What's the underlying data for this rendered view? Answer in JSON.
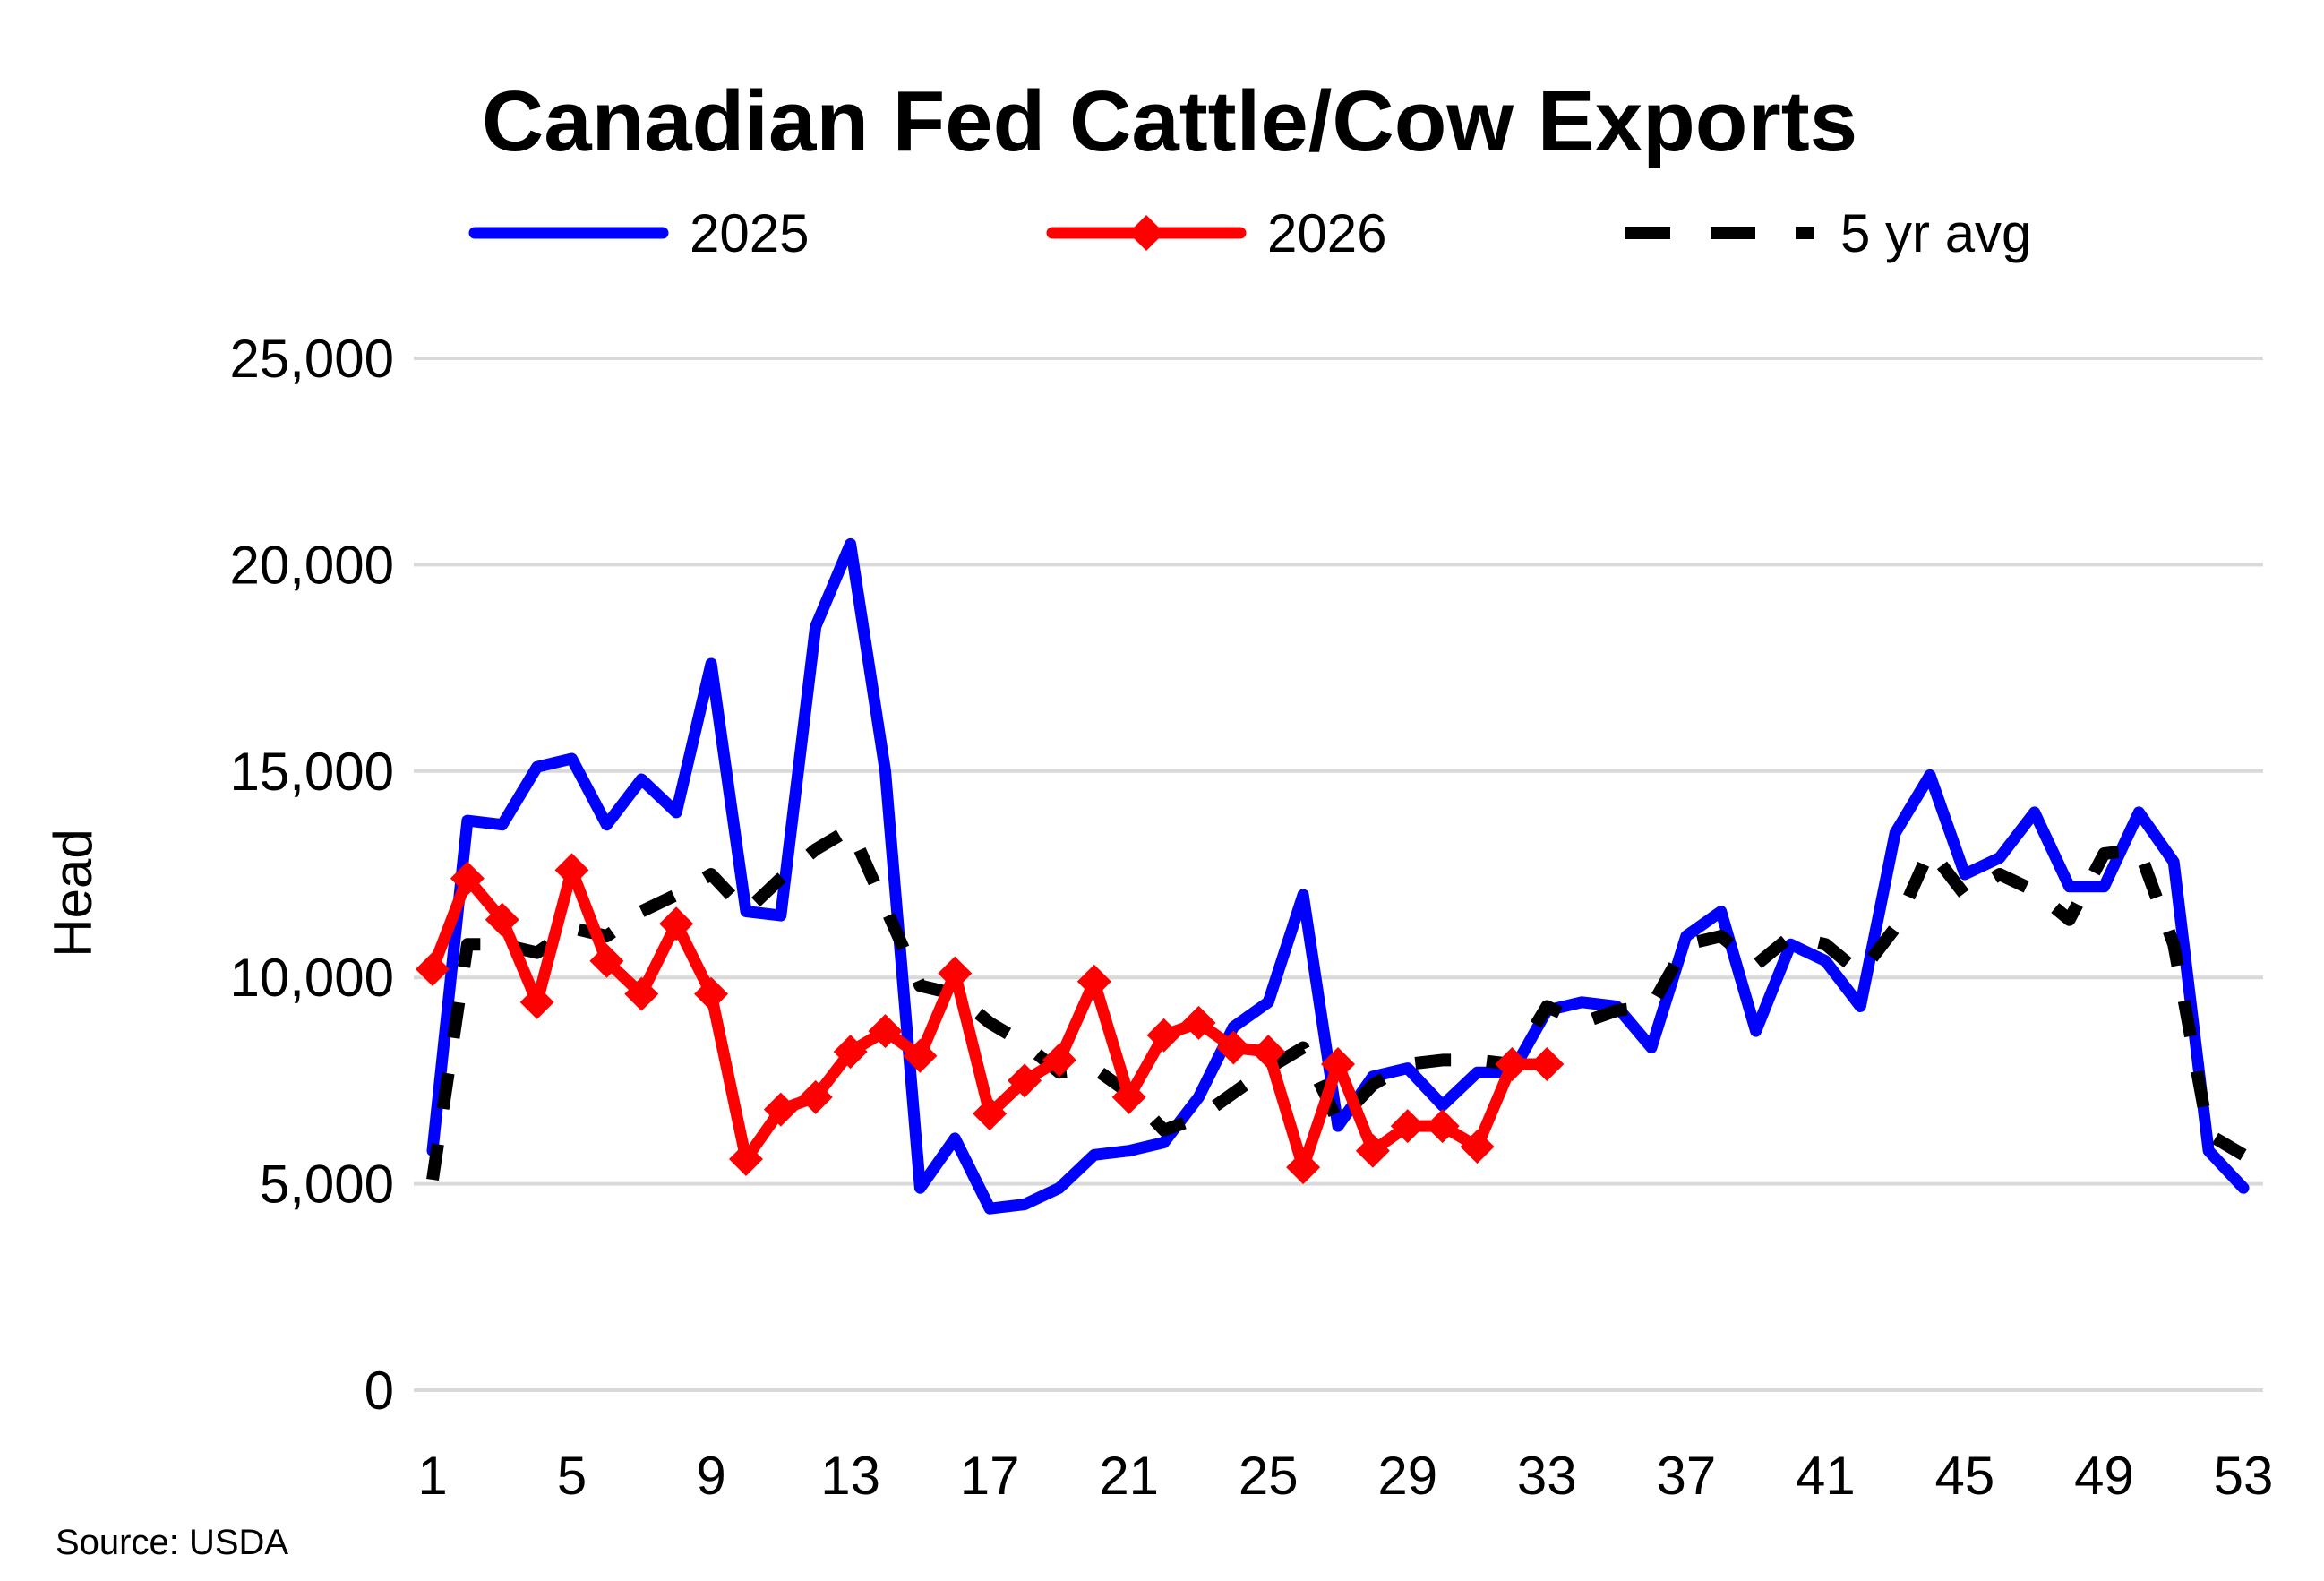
{
  "chart_data": {
    "type": "line",
    "title": "Canadian Fed Cattle/Cow Exports",
    "xlabel": "",
    "ylabel": "Head",
    "ylim": [
      0,
      25000
    ],
    "xlim": [
      1,
      53
    ],
    "x_ticks": [
      1,
      5,
      9,
      13,
      17,
      21,
      25,
      29,
      33,
      37,
      41,
      45,
      49,
      53
    ],
    "y_ticks": [
      0,
      5000,
      10000,
      15000,
      20000,
      25000
    ],
    "y_tick_labels": [
      "0",
      "5,000",
      "10,000",
      "15,000",
      "20,000",
      "25,000"
    ],
    "grid": "horizontal",
    "legend_position": "top",
    "source": "Source: USDA",
    "x": [
      1,
      2,
      3,
      4,
      5,
      6,
      7,
      8,
      9,
      10,
      11,
      12,
      13,
      14,
      15,
      16,
      17,
      18,
      19,
      20,
      21,
      22,
      23,
      24,
      25,
      26,
      27,
      28,
      29,
      30,
      31,
      32,
      33,
      34,
      35,
      36,
      37,
      38,
      39,
      40,
      41,
      42,
      43,
      44,
      45,
      46,
      47,
      48,
      49,
      50,
      51,
      52,
      53
    ],
    "series": [
      {
        "name": "2025",
        "color": "#0000FF",
        "style": "solid",
        "values": [
          5800,
          13800,
          13700,
          15100,
          15300,
          13700,
          14800,
          14000,
          17600,
          11600,
          11500,
          18500,
          20500,
          15000,
          4900,
          6100,
          4400,
          4500,
          4900,
          5700,
          5800,
          6000,
          7100,
          8800,
          9400,
          12000,
          6400,
          7600,
          7800,
          6900,
          7700,
          7700,
          9200,
          9400,
          9300,
          8300,
          11000,
          11600,
          8700,
          10800,
          10400,
          9300,
          13500,
          14900,
          12500,
          12900,
          14000,
          12200,
          12200,
          14000,
          12800,
          5800,
          4900
        ]
      },
      {
        "name": "2026",
        "color": "#FF0000",
        "style": "solid-diamond-markers",
        "values": [
          10200,
          12400,
          11400,
          9400,
          12600,
          10400,
          9600,
          11300,
          9600,
          5600,
          6800,
          7100,
          8200,
          8700,
          8100,
          10100,
          6700,
          7500,
          8000,
          9900,
          7100,
          8600,
          8900,
          8300,
          8200,
          5400,
          7900,
          5800,
          6400,
          6400,
          5900,
          7900,
          7900,
          null,
          null,
          null,
          null,
          null,
          null,
          null,
          null,
          null,
          null,
          null,
          null,
          null,
          null,
          null,
          null,
          null,
          null,
          null,
          null
        ]
      },
      {
        "name": "5 yr avg",
        "color": "#000000",
        "style": "dashed",
        "values": [
          5100,
          10800,
          10800,
          10600,
          11200,
          11000,
          11600,
          12000,
          12500,
          11600,
          12400,
          13100,
          13600,
          11700,
          9800,
          9600,
          8900,
          8400,
          7700,
          7800,
          7200,
          6300,
          6600,
          7200,
          7800,
          8300,
          6500,
          7400,
          7900,
          8000,
          8000,
          7900,
          9300,
          8900,
          9200,
          9300,
          10800,
          11000,
          10300,
          11000,
          10800,
          10100,
          11200,
          13100,
          12000,
          12500,
          12100,
          11400,
          13000,
          13100,
          10800,
          6200,
          5700
        ]
      }
    ]
  }
}
